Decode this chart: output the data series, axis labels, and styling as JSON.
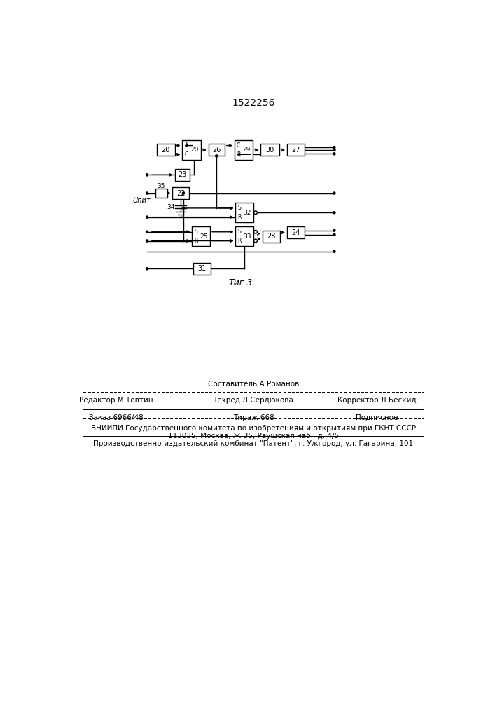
{
  "title": "1522256",
  "fig_label": "Τиг.3",
  "background_color": "#ffffff",
  "line_color": "#000000",
  "footer": {
    "line1_center": "Составитель А.Романов",
    "line2_left": "Редактор М.Товтин",
    "line2_center": "Техред Л.Сердюкова",
    "line2_right": "Корректор Л.Бескид",
    "line3_left": "Заказ 6966/48",
    "line3_center": "Тираж 668",
    "line3_right": "Подписное",
    "line4": "ВНИИПИ Государственного комитета по изобретениям и открытиям при ГКНТ СССР",
    "line5": "113035, Москва, Ж-35, Раушская наб., д. 4/5",
    "line6": "Производственно-издательский комбинат \"Патент\", г. Ужгород, ул. Гагарина, 101"
  }
}
